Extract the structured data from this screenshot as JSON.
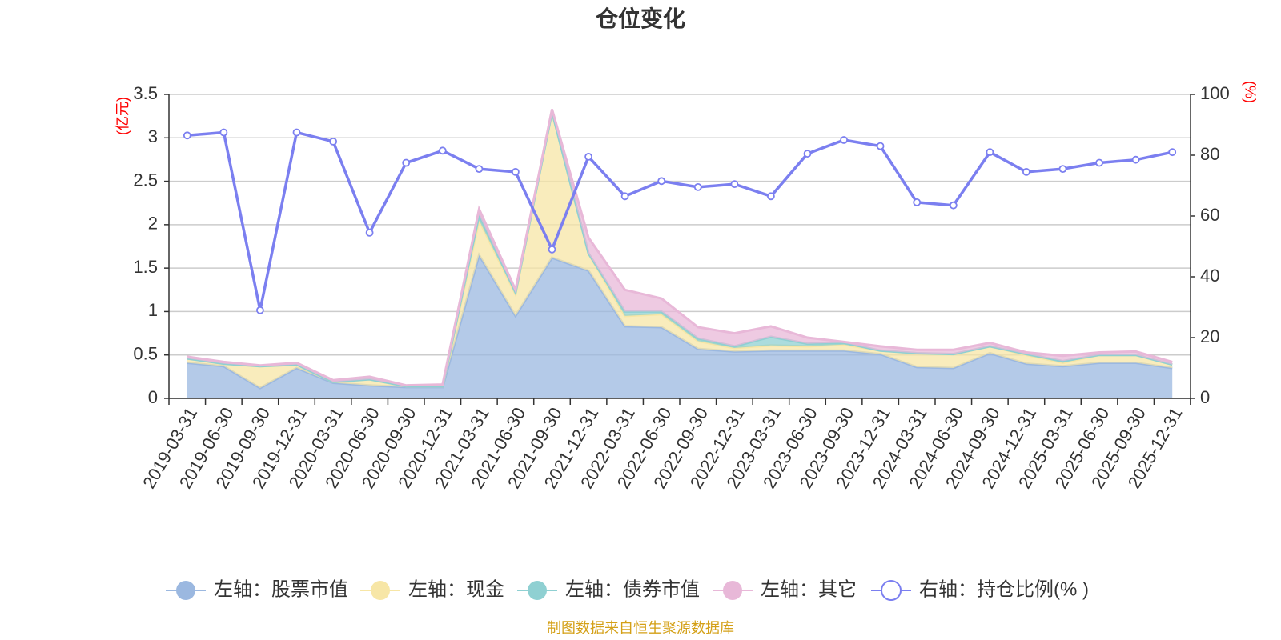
{
  "chart_data": {
    "type": "area",
    "title": "仓位变化",
    "left_unit": "(亿元)",
    "right_unit": "(%)",
    "left_ticks": [
      "0",
      "0.5",
      "1",
      "1.5",
      "2",
      "2.5",
      "3",
      "3.5"
    ],
    "right_ticks": [
      "0",
      "20",
      "40",
      "60",
      "80",
      "100"
    ],
    "ylim_left": [
      0,
      3.5
    ],
    "ylim_right": [
      0,
      100
    ],
    "categories": [
      "2019-03-31",
      "2019-06-30",
      "2019-09-30",
      "2019-12-31",
      "2020-03-31",
      "2020-06-30",
      "2020-09-30",
      "2020-12-31",
      "2021-03-31",
      "2021-06-30",
      "2021-09-30",
      "2021-12-31",
      "2022-03-31",
      "2022-06-30",
      "2022-09-30",
      "2022-12-31",
      "2023-03-31",
      "2023-06-30",
      "2023-09-30",
      "2023-12-31",
      "2024-03-31",
      "2024-06-30",
      "2024-09-30",
      "2024-12-31",
      "2025-03-31",
      "2025-06-30",
      "2025-09-30",
      "2025-12-31"
    ],
    "series": [
      {
        "name": "左轴：股票市值",
        "axis": "left",
        "kind": "area",
        "color": "#9bb8e0",
        "values": [
          0.41,
          0.37,
          0.12,
          0.35,
          0.18,
          0.15,
          0.13,
          0.13,
          1.65,
          0.95,
          1.62,
          1.47,
          0.83,
          0.82,
          0.57,
          0.54,
          0.55,
          0.55,
          0.55,
          0.51,
          0.36,
          0.35,
          0.52,
          0.4,
          0.37,
          0.41,
          0.41,
          0.35
        ]
      },
      {
        "name": "左轴：现金",
        "axis": "left",
        "kind": "area",
        "color": "#f7e6a6",
        "values": [
          0.05,
          0.03,
          0.25,
          0.04,
          0.01,
          0.07,
          0.01,
          0.01,
          0.4,
          0.25,
          1.68,
          0.2,
          0.12,
          0.15,
          0.09,
          0.04,
          0.06,
          0.05,
          0.07,
          0.04,
          0.16,
          0.16,
          0.08,
          0.1,
          0.04,
          0.09,
          0.09,
          0.04
        ]
      },
      {
        "name": "左轴：债券市值",
        "axis": "left",
        "kind": "area",
        "color": "#8fd0d2",
        "values": [
          0,
          0,
          0,
          0,
          0,
          0,
          0,
          0,
          0.06,
          0.02,
          0,
          0,
          0.05,
          0.03,
          0.03,
          0.02,
          0.1,
          0.03,
          0.02,
          0,
          0,
          0,
          0,
          0.01,
          0.02,
          0,
          0,
          0
        ]
      },
      {
        "name": "左轴：其它",
        "axis": "left",
        "kind": "area",
        "color": "#e8b8d8",
        "values": [
          0.02,
          0.02,
          0.01,
          0.02,
          0.02,
          0.03,
          0.01,
          0.02,
          0.07,
          0.03,
          0.03,
          0.18,
          0.25,
          0.15,
          0.13,
          0.15,
          0.12,
          0.07,
          0.01,
          0.05,
          0.04,
          0.05,
          0.04,
          0.02,
          0.06,
          0.03,
          0.04,
          0.03
        ]
      },
      {
        "name": "右轴：持仓比例(% )",
        "axis": "right",
        "kind": "line",
        "color": "#7b7ff0",
        "values": [
          86.5,
          87.5,
          29,
          87.5,
          84.5,
          54.5,
          77.5,
          81.5,
          75.5,
          74.5,
          49,
          79.5,
          66.5,
          71.5,
          69.5,
          70.5,
          66.5,
          80.5,
          85,
          83,
          64.5,
          63.5,
          81,
          74.5,
          75.5,
          77.5,
          78.5,
          81
        ]
      }
    ],
    "legend": [
      "左轴：股票市值",
      "左轴：现金",
      "左轴：债券市值",
      "左轴：其它",
      "右轴：持仓比例(% )"
    ],
    "legend_position": "bottom",
    "grid": true
  },
  "source": "制图数据来自恒生聚源数据库"
}
